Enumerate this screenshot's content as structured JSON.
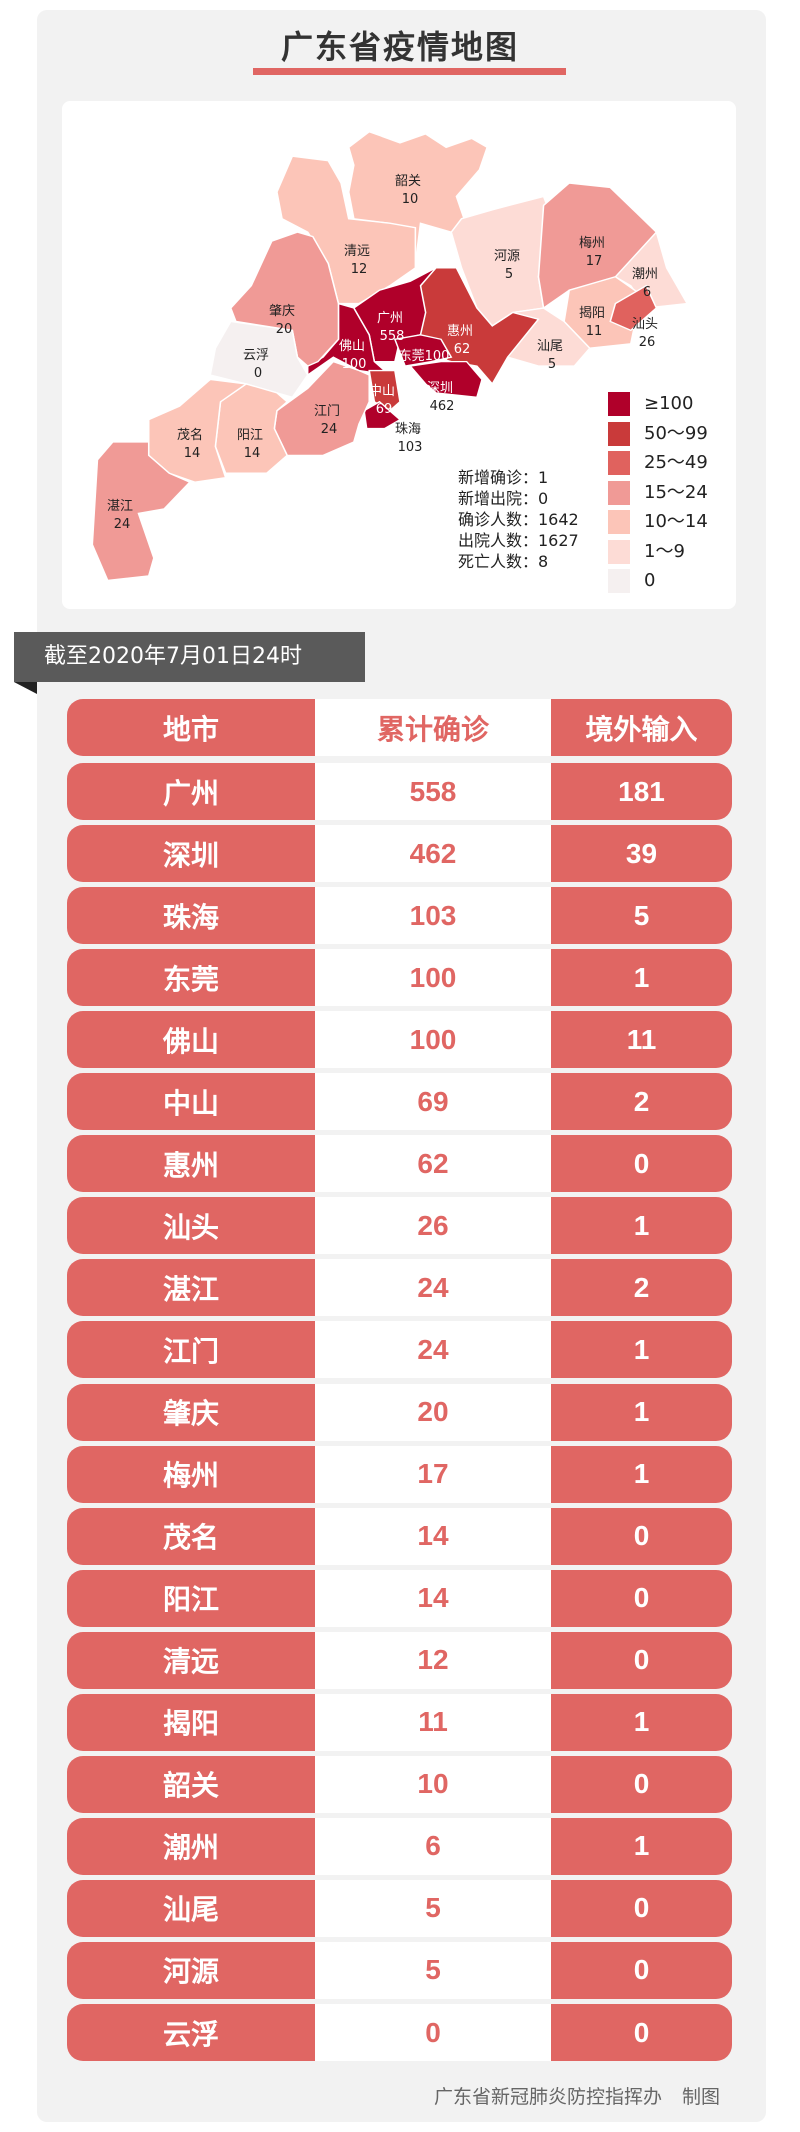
{
  "title": "广东省疫情地图",
  "colors": {
    "accent": "#e06663",
    "legend": [
      "#b0002a",
      "#c93a3a",
      "#e0625e",
      "#f09a96",
      "#fcc5b8",
      "#fddcd6",
      "#f5f0f0"
    ]
  },
  "map": {
    "regions": [
      {
        "name": "韶关",
        "value": "10"
      },
      {
        "name": "清远",
        "value": "12"
      },
      {
        "name": "河源",
        "value": "5"
      },
      {
        "name": "梅州",
        "value": "17"
      },
      {
        "name": "潮州",
        "value": "6"
      },
      {
        "name": "揭阳",
        "value": "11"
      },
      {
        "name": "汕头",
        "value": "26"
      },
      {
        "name": "汕尾",
        "value": "5"
      },
      {
        "name": "惠州",
        "value": "62"
      },
      {
        "name": "广州",
        "value": "558"
      },
      {
        "name": "佛山",
        "value": "100"
      },
      {
        "name": "东莞",
        "value": "100"
      },
      {
        "name": "深圳",
        "value": "462"
      },
      {
        "name": "中山",
        "value": "69"
      },
      {
        "name": "珠海",
        "value": "103"
      },
      {
        "name": "江门",
        "value": "24"
      },
      {
        "name": "肇庆",
        "value": "20"
      },
      {
        "name": "云浮",
        "value": "0"
      },
      {
        "name": "阳江",
        "value": "14"
      },
      {
        "name": "茂名",
        "value": "14"
      },
      {
        "name": "湛江",
        "value": "24"
      }
    ],
    "stats": [
      "新增确诊：1",
      "新增出院：0",
      "确诊人数：1642",
      "出院人数：1627",
      "死亡人数：8"
    ],
    "legend": [
      "≥100",
      "50～99",
      "25～49",
      "15～24",
      "10～14",
      "1～9",
      "0"
    ]
  },
  "date_banner": "截至2020年7月01日24时",
  "table": {
    "headers": [
      "地市",
      "累计确诊",
      "境外输入"
    ],
    "rows": [
      [
        "广州",
        "558",
        "181"
      ],
      [
        "深圳",
        "462",
        "39"
      ],
      [
        "珠海",
        "103",
        "5"
      ],
      [
        "东莞",
        "100",
        "1"
      ],
      [
        "佛山",
        "100",
        "11"
      ],
      [
        "中山",
        "69",
        "2"
      ],
      [
        "惠州",
        "62",
        "0"
      ],
      [
        "汕头",
        "26",
        "1"
      ],
      [
        "湛江",
        "24",
        "2"
      ],
      [
        "江门",
        "24",
        "1"
      ],
      [
        "肇庆",
        "20",
        "1"
      ],
      [
        "梅州",
        "17",
        "1"
      ],
      [
        "茂名",
        "14",
        "0"
      ],
      [
        "阳江",
        "14",
        "0"
      ],
      [
        "清远",
        "12",
        "0"
      ],
      [
        "揭阳",
        "11",
        "1"
      ],
      [
        "韶关",
        "10",
        "0"
      ],
      [
        "潮州",
        "6",
        "1"
      ],
      [
        "汕尾",
        "5",
        "0"
      ],
      [
        "河源",
        "5",
        "0"
      ],
      [
        "云浮",
        "0",
        "0"
      ]
    ]
  },
  "footer": "广东省新冠肺炎防控指挥办 制图"
}
